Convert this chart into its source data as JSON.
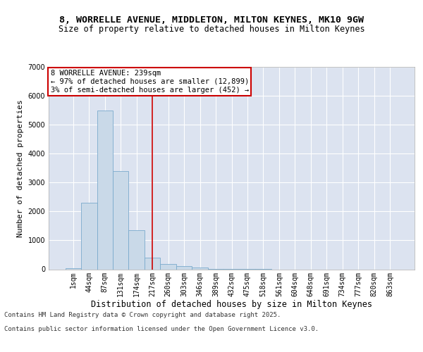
{
  "title_line1": "8, WORRELLE AVENUE, MIDDLETON, MILTON KEYNES, MK10 9GW",
  "title_line2": "Size of property relative to detached houses in Milton Keynes",
  "xlabel": "Distribution of detached houses by size in Milton Keynes",
  "ylabel": "Number of detached properties",
  "bar_color": "#c9d9e8",
  "bar_edge_color": "#7aaacc",
  "background_color": "#dce3f0",
  "grid_color": "#ffffff",
  "categories": [
    "1sqm",
    "44sqm",
    "87sqm",
    "131sqm",
    "174sqm",
    "217sqm",
    "260sqm",
    "303sqm",
    "346sqm",
    "389sqm",
    "432sqm",
    "475sqm",
    "518sqm",
    "561sqm",
    "604sqm",
    "648sqm",
    "691sqm",
    "734sqm",
    "777sqm",
    "820sqm",
    "863sqm"
  ],
  "values": [
    40,
    2300,
    5500,
    3400,
    1350,
    400,
    175,
    105,
    50,
    15,
    5,
    2,
    1,
    0,
    0,
    0,
    0,
    0,
    0,
    0,
    0
  ],
  "red_line_x": 5.0,
  "annotation_text": "8 WORRELLE AVENUE: 239sqm\n← 97% of detached houses are smaller (12,899)\n3% of semi-detached houses are larger (452) →",
  "annotation_box_color": "#ffffff",
  "annotation_border_color": "#cc0000",
  "ylim": [
    0,
    7000
  ],
  "yticks": [
    0,
    1000,
    2000,
    3000,
    4000,
    5000,
    6000,
    7000
  ],
  "footer_line1": "Contains HM Land Registry data © Crown copyright and database right 2025.",
  "footer_line2": "Contains public sector information licensed under the Open Government Licence v3.0.",
  "title_fontsize": 9.5,
  "subtitle_fontsize": 8.5,
  "ylabel_fontsize": 8,
  "xlabel_fontsize": 8.5,
  "tick_fontsize": 7,
  "annotation_fontsize": 7.5,
  "footer_fontsize": 6.5
}
